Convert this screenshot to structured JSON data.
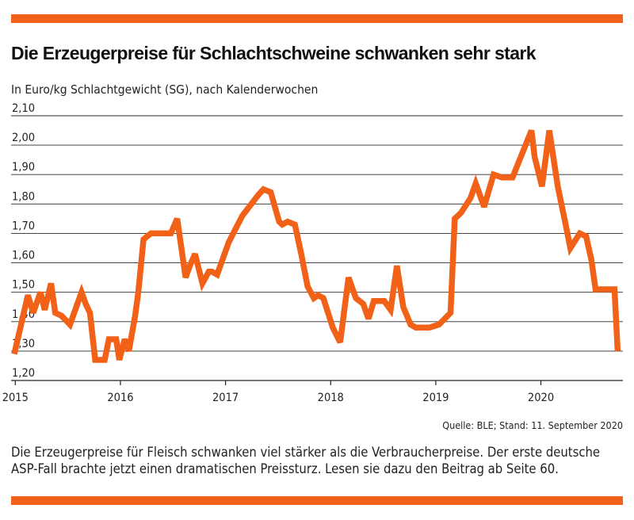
{
  "colors": {
    "accent": "#f26118",
    "grid": "#2b2b2b",
    "axis": "#222222"
  },
  "header": {
    "title": "Die Erzeugerpreise für Schlachtschweine schwanken sehr stark",
    "subtitle": "In Euro/kg Schlachtgewicht (SG), nach Kalenderwochen"
  },
  "footer": {
    "source": "Quelle: BLE; Stand: 11. September 2020",
    "caption": "Die Erzeugerpreise für Fleisch schwanken viel stärker als die Verbraucherpreise. Der erste deutsche ASP-Fall brachte jetzt einen dramatischen Preissturz. Lesen sie dazu den Beitrag ab Seite  60."
  },
  "chart_data": {
    "type": "line",
    "ylim": [
      1.2,
      2.1
    ],
    "yticks": [
      1.2,
      1.3,
      1.4,
      1.5,
      1.6,
      1.7,
      1.8,
      1.9,
      2.0,
      2.1
    ],
    "ytick_labels": [
      "1,20",
      "1,30",
      "1,40",
      "1,50",
      "1,60",
      "1,70",
      "1,80",
      "1,90",
      "2,00",
      "2,10"
    ],
    "xlim": [
      2014.96,
      2020.78
    ],
    "xticks": [
      2015,
      2016,
      2017,
      2018,
      2019,
      2020
    ],
    "xtick_labels": [
      "2015",
      "2016",
      "2017",
      "2018",
      "2019",
      "2020"
    ],
    "grid": "horizontal",
    "series": [
      {
        "x": [
          2014.99,
          2015.12,
          2015.17,
          2015.24,
          2015.28,
          2015.34,
          2015.38,
          2015.44,
          2015.52,
          2015.56,
          2015.63,
          2015.67,
          2015.71,
          2015.76,
          2015.85,
          2015.89,
          2015.96,
          2015.99,
          2016.04,
          2016.08,
          2016.14,
          2016.17,
          2016.22,
          2016.29,
          2016.48,
          2016.54,
          2016.62,
          2016.66,
          2016.71,
          2016.78,
          2016.84,
          2016.87,
          2016.92,
          2016.96,
          2017.03,
          2017.16,
          2017.31,
          2017.36,
          2017.43,
          2017.51,
          2017.54,
          2017.59,
          2017.66,
          2017.72,
          2017.78,
          2017.84,
          2017.88,
          2017.93,
          2018.02,
          2018.09,
          2018.17,
          2018.24,
          2018.31,
          2018.36,
          2018.41,
          2018.45,
          2018.51,
          2018.57,
          2018.63,
          2018.69,
          2018.76,
          2018.81,
          2018.86,
          2018.94,
          2019.03,
          2019.14,
          2019.18,
          2019.24,
          2019.33,
          2019.38,
          2019.46,
          2019.5,
          2019.55,
          2019.63,
          2019.73,
          2019.91,
          2019.94,
          2020.01,
          2020.08,
          2020.16,
          2020.23,
          2020.28,
          2020.37,
          2020.43,
          2020.48,
          2020.52,
          2020.56,
          2020.61,
          2020.7,
          2020.73
        ],
        "y": [
          1.29,
          1.49,
          1.43,
          1.5,
          1.44,
          1.53,
          1.43,
          1.42,
          1.39,
          1.43,
          1.5,
          1.46,
          1.43,
          1.27,
          1.27,
          1.34,
          1.34,
          1.27,
          1.34,
          1.3,
          1.42,
          1.5,
          1.68,
          1.7,
          1.7,
          1.75,
          1.55,
          1.59,
          1.63,
          1.53,
          1.57,
          1.57,
          1.56,
          1.6,
          1.67,
          1.76,
          1.83,
          1.85,
          1.84,
          1.74,
          1.73,
          1.74,
          1.73,
          1.63,
          1.52,
          1.48,
          1.49,
          1.48,
          1.38,
          1.33,
          1.55,
          1.48,
          1.46,
          1.41,
          1.47,
          1.47,
          1.47,
          1.44,
          1.59,
          1.45,
          1.39,
          1.38,
          1.38,
          1.38,
          1.39,
          1.43,
          1.75,
          1.77,
          1.82,
          1.87,
          1.79,
          1.84,
          1.9,
          1.89,
          1.89,
          2.05,
          1.96,
          1.86,
          2.05,
          1.86,
          1.74,
          1.65,
          1.7,
          1.69,
          1.61,
          1.51,
          1.51,
          1.51,
          1.51,
          1.3
        ]
      }
    ]
  }
}
